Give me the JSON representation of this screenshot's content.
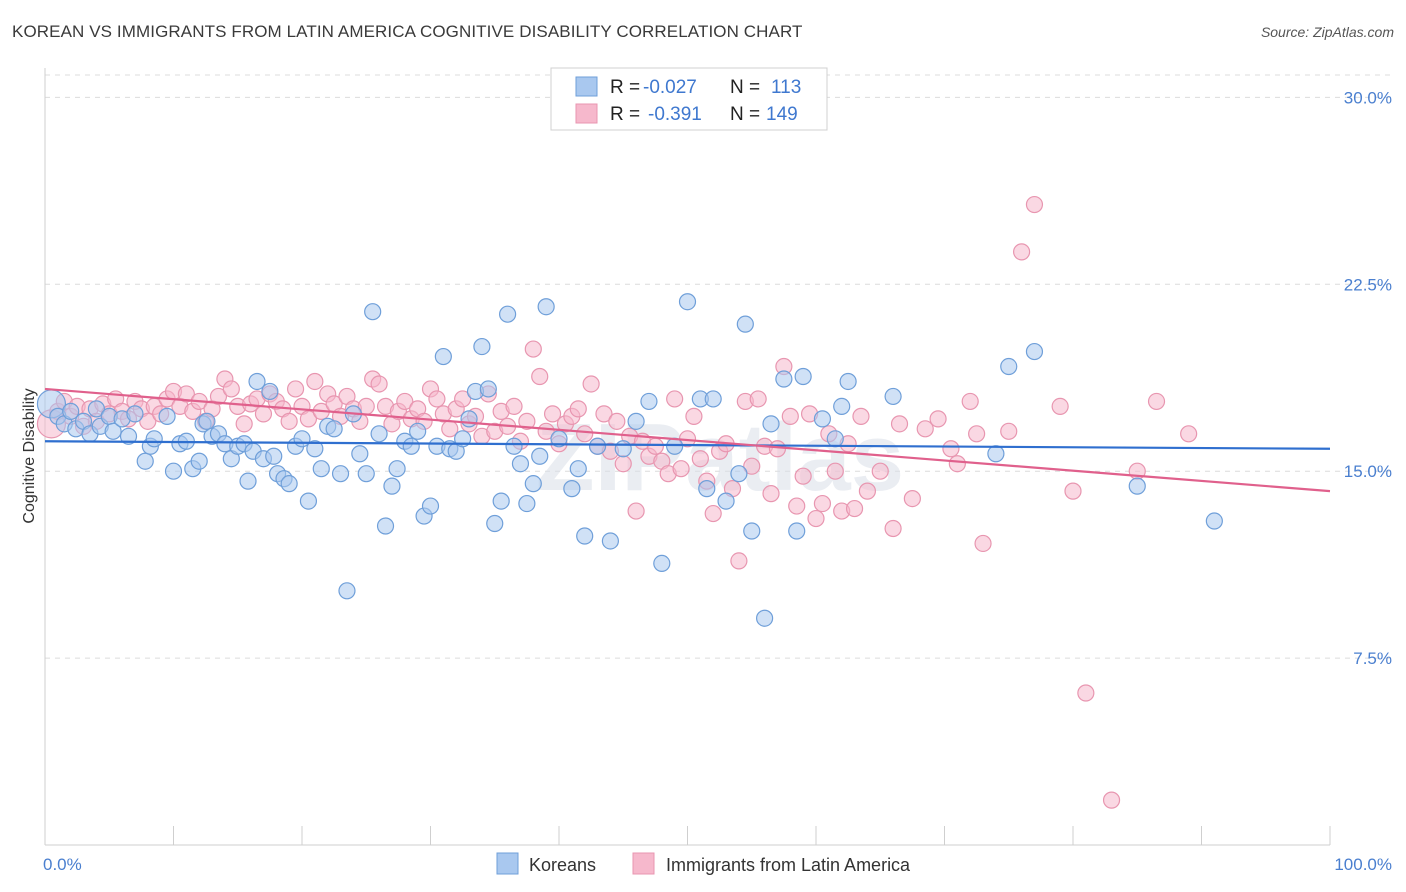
{
  "title": "KOREAN VS IMMIGRANTS FROM LATIN AMERICA COGNITIVE DISABILITY CORRELATION CHART",
  "source": "Source: ZipAtlas.com",
  "watermark": "ZIPatlas",
  "colors": {
    "blue_fill": "#a9c8ef",
    "blue_stroke": "#6f9fd9",
    "blue_line": "#2f6fcf",
    "pink_fill": "#f6b8cc",
    "pink_stroke": "#e896b0",
    "pink_line": "#e0608c",
    "tick_label": "#4a7fcf",
    "grid": "#dcdcdc"
  },
  "legend": {
    "rows": [
      {
        "r_label": "R =",
        "r_value": "-0.027",
        "n_label": "N =",
        "n_value": "113"
      },
      {
        "r_label": "R =",
        "r_value": "-0.391",
        "n_label": "N =",
        "n_value": "149"
      }
    ]
  },
  "chart_data": {
    "type": "scatter",
    "ylabel": "Cognitive Disability",
    "xlabel": "",
    "xlim": [
      0,
      100
    ],
    "ylim": [
      0,
      31.5
    ],
    "x_ticks": [
      "0.0%",
      "100.0%"
    ],
    "y_ticks": [
      {
        "value": 7.5,
        "label": "7.5%"
      },
      {
        "value": 15.0,
        "label": "15.0%"
      },
      {
        "value": 22.5,
        "label": "22.5%"
      },
      {
        "value": 30.0,
        "label": "30.0%"
      }
    ],
    "grid": "horizontal dashed",
    "legend_position": "top-center",
    "series": [
      {
        "name": "Koreans",
        "trend": {
          "x0": 0,
          "y0": 16.2,
          "x1": 100,
          "y1": 15.9
        },
        "points": [
          [
            0.5,
            17.7
          ],
          [
            1.0,
            17.2
          ],
          [
            1.5,
            16.9
          ],
          [
            2.0,
            17.4
          ],
          [
            2.4,
            16.7
          ],
          [
            3.0,
            17.0
          ],
          [
            3.5,
            16.5
          ],
          [
            4.0,
            17.5
          ],
          [
            4.3,
            16.8
          ],
          [
            5.0,
            17.2
          ],
          [
            5.3,
            16.6
          ],
          [
            6.0,
            17.1
          ],
          [
            6.5,
            16.4
          ],
          [
            7.0,
            17.3
          ],
          [
            7.8,
            15.4
          ],
          [
            8.2,
            16.0
          ],
          [
            8.5,
            16.3
          ],
          [
            9.5,
            17.2
          ],
          [
            10.0,
            15.0
          ],
          [
            10.5,
            16.1
          ],
          [
            11.0,
            16.2
          ],
          [
            11.5,
            15.1
          ],
          [
            12.0,
            15.4
          ],
          [
            12.3,
            16.9
          ],
          [
            12.6,
            17.0
          ],
          [
            13.0,
            16.4
          ],
          [
            13.5,
            16.5
          ],
          [
            14.0,
            16.1
          ],
          [
            14.5,
            15.5
          ],
          [
            15.0,
            16.0
          ],
          [
            15.5,
            16.1
          ],
          [
            15.8,
            14.6
          ],
          [
            16.2,
            15.8
          ],
          [
            16.5,
            18.6
          ],
          [
            17.0,
            15.5
          ],
          [
            17.5,
            18.2
          ],
          [
            17.8,
            15.6
          ],
          [
            18.1,
            14.9
          ],
          [
            18.6,
            14.7
          ],
          [
            19.0,
            14.5
          ],
          [
            19.5,
            16.0
          ],
          [
            20.0,
            16.3
          ],
          [
            20.5,
            13.8
          ],
          [
            21.0,
            15.9
          ],
          [
            21.5,
            15.1
          ],
          [
            22.0,
            16.8
          ],
          [
            22.5,
            16.7
          ],
          [
            23.0,
            14.9
          ],
          [
            23.5,
            10.2
          ],
          [
            24.0,
            17.3
          ],
          [
            24.5,
            15.7
          ],
          [
            25.0,
            14.9
          ],
          [
            25.5,
            21.4
          ],
          [
            26.0,
            16.5
          ],
          [
            26.5,
            12.8
          ],
          [
            27.0,
            14.4
          ],
          [
            27.4,
            15.1
          ],
          [
            28.0,
            16.2
          ],
          [
            28.5,
            16.0
          ],
          [
            29.0,
            16.6
          ],
          [
            29.5,
            13.2
          ],
          [
            30.0,
            13.6
          ],
          [
            30.5,
            16.0
          ],
          [
            31.0,
            19.6
          ],
          [
            31.5,
            15.9
          ],
          [
            32.0,
            15.8
          ],
          [
            32.5,
            16.3
          ],
          [
            33.0,
            17.1
          ],
          [
            33.5,
            18.2
          ],
          [
            34.0,
            20.0
          ],
          [
            34.5,
            18.3
          ],
          [
            35.0,
            12.9
          ],
          [
            35.5,
            13.8
          ],
          [
            36.0,
            21.3
          ],
          [
            36.5,
            16.0
          ],
          [
            37.0,
            15.3
          ],
          [
            37.5,
            13.7
          ],
          [
            38.0,
            14.5
          ],
          [
            38.5,
            15.6
          ],
          [
            39.0,
            21.6
          ],
          [
            40.0,
            16.3
          ],
          [
            41.0,
            14.3
          ],
          [
            41.5,
            15.1
          ],
          [
            42.0,
            12.4
          ],
          [
            43.0,
            16.0
          ],
          [
            44.0,
            12.2
          ],
          [
            45.0,
            15.9
          ],
          [
            46.0,
            17.0
          ],
          [
            47.0,
            17.8
          ],
          [
            48.0,
            11.3
          ],
          [
            49.0,
            16.0
          ],
          [
            50.0,
            21.8
          ],
          [
            51.0,
            17.9
          ],
          [
            51.5,
            14.3
          ],
          [
            52.0,
            17.9
          ],
          [
            53.0,
            13.8
          ],
          [
            54.0,
            14.9
          ],
          [
            54.5,
            20.9
          ],
          [
            55.0,
            12.6
          ],
          [
            56.0,
            9.1
          ],
          [
            56.5,
            16.9
          ],
          [
            57.5,
            18.7
          ],
          [
            58.5,
            12.6
          ],
          [
            59.0,
            18.8
          ],
          [
            60.5,
            17.1
          ],
          [
            61.5,
            16.3
          ],
          [
            62.0,
            17.6
          ],
          [
            62.5,
            18.6
          ],
          [
            66.0,
            18.0
          ],
          [
            74.0,
            15.7
          ],
          [
            75.0,
            19.2
          ],
          [
            77.0,
            19.8
          ],
          [
            85.0,
            14.4
          ],
          [
            91.0,
            13.0
          ]
        ]
      },
      {
        "name": "Immigrants from Latin America",
        "trend": {
          "x0": 0,
          "y0": 18.3,
          "x1": 100,
          "y1": 14.2
        },
        "points": [
          [
            0.5,
            16.9
          ],
          [
            1.0,
            17.4
          ],
          [
            1.5,
            17.8
          ],
          [
            2.0,
            17.2
          ],
          [
            2.5,
            17.6
          ],
          [
            3.0,
            16.8
          ],
          [
            3.5,
            17.5
          ],
          [
            4.0,
            17.0
          ],
          [
            4.5,
            17.7
          ],
          [
            5.0,
            17.3
          ],
          [
            5.5,
            17.9
          ],
          [
            6.0,
            17.4
          ],
          [
            6.5,
            17.1
          ],
          [
            7.0,
            17.8
          ],
          [
            7.5,
            17.5
          ],
          [
            8.0,
            17.0
          ],
          [
            8.5,
            17.6
          ],
          [
            9.0,
            17.3
          ],
          [
            9.5,
            17.9
          ],
          [
            10.0,
            18.2
          ],
          [
            10.5,
            17.6
          ],
          [
            11.0,
            18.1
          ],
          [
            11.5,
            17.4
          ],
          [
            12.0,
            17.8
          ],
          [
            12.5,
            17.0
          ],
          [
            13.0,
            17.5
          ],
          [
            13.5,
            18.0
          ],
          [
            14.0,
            18.7
          ],
          [
            14.5,
            18.3
          ],
          [
            15.0,
            17.6
          ],
          [
            15.5,
            16.9
          ],
          [
            16.0,
            17.7
          ],
          [
            16.5,
            17.9
          ],
          [
            17.0,
            17.3
          ],
          [
            17.5,
            18.1
          ],
          [
            18.0,
            17.8
          ],
          [
            18.5,
            17.5
          ],
          [
            19.0,
            17.0
          ],
          [
            19.5,
            18.3
          ],
          [
            20.0,
            17.6
          ],
          [
            20.5,
            17.1
          ],
          [
            21.0,
            18.6
          ],
          [
            21.5,
            17.4
          ],
          [
            22.0,
            18.1
          ],
          [
            22.5,
            17.7
          ],
          [
            23.0,
            17.2
          ],
          [
            23.5,
            18.0
          ],
          [
            24.0,
            17.5
          ],
          [
            24.5,
            17.0
          ],
          [
            25.0,
            17.6
          ],
          [
            25.5,
            18.7
          ],
          [
            26.0,
            18.5
          ],
          [
            26.5,
            17.6
          ],
          [
            27.0,
            16.9
          ],
          [
            27.5,
            17.4
          ],
          [
            28.0,
            17.8
          ],
          [
            28.5,
            17.1
          ],
          [
            29.0,
            17.5
          ],
          [
            29.5,
            17.0
          ],
          [
            30.0,
            18.3
          ],
          [
            30.5,
            17.9
          ],
          [
            31.0,
            17.3
          ],
          [
            31.5,
            16.7
          ],
          [
            32.0,
            17.5
          ],
          [
            32.5,
            17.9
          ],
          [
            33.0,
            16.9
          ],
          [
            33.5,
            17.2
          ],
          [
            34.0,
            16.4
          ],
          [
            34.5,
            18.1
          ],
          [
            35.0,
            16.6
          ],
          [
            35.5,
            17.4
          ],
          [
            36.0,
            16.8
          ],
          [
            36.5,
            17.6
          ],
          [
            37.0,
            16.2
          ],
          [
            37.5,
            17.0
          ],
          [
            38.0,
            19.9
          ],
          [
            38.5,
            18.8
          ],
          [
            39.0,
            16.6
          ],
          [
            39.5,
            17.3
          ],
          [
            40.0,
            16.1
          ],
          [
            40.5,
            16.9
          ],
          [
            41.0,
            17.2
          ],
          [
            41.5,
            17.5
          ],
          [
            42.0,
            16.5
          ],
          [
            42.5,
            18.5
          ],
          [
            43.0,
            16.0
          ],
          [
            43.5,
            17.3
          ],
          [
            44.0,
            15.8
          ],
          [
            44.5,
            17.0
          ],
          [
            45.0,
            15.3
          ],
          [
            45.5,
            16.4
          ],
          [
            46.0,
            13.4
          ],
          [
            46.5,
            16.2
          ],
          [
            47.0,
            15.6
          ],
          [
            47.5,
            16.0
          ],
          [
            48.0,
            15.4
          ],
          [
            48.5,
            14.9
          ],
          [
            49.0,
            17.9
          ],
          [
            49.5,
            15.1
          ],
          [
            50.0,
            16.3
          ],
          [
            50.5,
            17.2
          ],
          [
            51.0,
            15.5
          ],
          [
            51.5,
            14.6
          ],
          [
            52.0,
            13.3
          ],
          [
            52.5,
            15.8
          ],
          [
            53.0,
            16.1
          ],
          [
            53.5,
            14.3
          ],
          [
            54.0,
            11.4
          ],
          [
            54.5,
            17.8
          ],
          [
            55.0,
            15.2
          ],
          [
            55.5,
            17.9
          ],
          [
            56.0,
            16.0
          ],
          [
            56.5,
            14.1
          ],
          [
            57.0,
            15.9
          ],
          [
            57.5,
            19.2
          ],
          [
            58.0,
            17.2
          ],
          [
            58.5,
            13.6
          ],
          [
            59.0,
            14.8
          ],
          [
            59.5,
            17.3
          ],
          [
            60.0,
            13.1
          ],
          [
            60.5,
            13.7
          ],
          [
            61.0,
            16.5
          ],
          [
            61.5,
            15.0
          ],
          [
            62.0,
            13.4
          ],
          [
            62.5,
            16.1
          ],
          [
            63.0,
            13.5
          ],
          [
            63.5,
            17.2
          ],
          [
            64.0,
            14.2
          ],
          [
            65.0,
            15.0
          ],
          [
            66.0,
            12.7
          ],
          [
            66.5,
            16.9
          ],
          [
            67.5,
            13.9
          ],
          [
            68.5,
            16.7
          ],
          [
            69.5,
            17.1
          ],
          [
            70.5,
            15.9
          ],
          [
            71.0,
            15.3
          ],
          [
            72.0,
            17.8
          ],
          [
            73.0,
            12.1
          ],
          [
            75.0,
            16.6
          ],
          [
            76.0,
            23.8
          ],
          [
            77.0,
            25.7
          ],
          [
            79.0,
            17.6
          ],
          [
            80.0,
            14.2
          ],
          [
            81.0,
            6.1
          ],
          [
            83.0,
            1.8
          ],
          [
            85.0,
            15.0
          ],
          [
            86.5,
            17.8
          ],
          [
            89.0,
            16.5
          ],
          [
            72.5,
            16.5
          ]
        ]
      }
    ]
  }
}
